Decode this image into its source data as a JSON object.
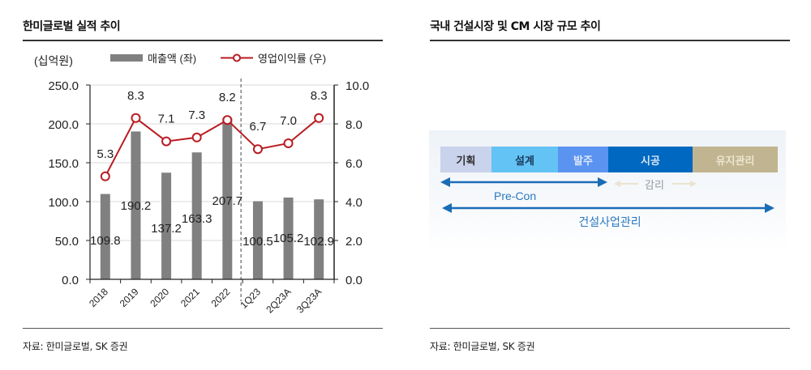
{
  "left_panel": {
    "title": "한미글로벌 실적 추이",
    "unit_label": "(십억원)",
    "legend": {
      "bar_label": "매출액 (좌)",
      "line_label": "영업이익률 (우)"
    },
    "source": "자료: 한미글로벌, SK 증권"
  },
  "right_panel": {
    "title": "국내 건설시장 및 CM 시장 규모 추이",
    "source": "자료: 한미글로벌, SK 증권",
    "diagram": {
      "stages": [
        {
          "label": "기획",
          "color": "#c9d3ec",
          "text_color": "#333333"
        },
        {
          "label": "설계",
          "color": "#62c3f4",
          "text_color": "#1b3a5c"
        },
        {
          "label": "발주",
          "color": "#5b93f0",
          "text_color": "#dce8fb"
        },
        {
          "label": "시공",
          "color": "#0068c0",
          "text_color": "#d6e6f7"
        },
        {
          "label": "유지관리",
          "color": "#c0b590",
          "text_color": "#ece6d0"
        }
      ],
      "precon_label": "Pre-Con",
      "supervision_label": "감리",
      "cm_label": "건설사업관리",
      "arrow_color": "#1a6cb5"
    }
  },
  "chart_data": {
    "type": "bar",
    "title": "한미글로벌 실적 추이",
    "categories": [
      "2018",
      "2019",
      "2020",
      "2021",
      "2022",
      "1Q23",
      "2Q23A",
      "3Q23A"
    ],
    "series": [
      {
        "name": "매출액 (좌)",
        "type": "bar",
        "axis": "left",
        "color": "#808080",
        "values": [
          109.8,
          190.2,
          137.2,
          163.3,
          207.7,
          100.5,
          105.2,
          102.9
        ]
      },
      {
        "name": "영업이익률 (우)",
        "type": "line",
        "axis": "right",
        "color": "#b81c22",
        "values": [
          5.3,
          8.3,
          7.1,
          7.3,
          8.2,
          6.7,
          7.0,
          8.3
        ]
      }
    ],
    "ylabel": "(십억원)",
    "ylim": [
      0,
      250
    ],
    "y_ticks": [
      "0.0",
      "50.0",
      "100.0",
      "150.0",
      "200.0",
      "250.0"
    ],
    "y2lim": [
      0,
      10
    ],
    "y2_ticks": [
      "0.0",
      "2.0",
      "4.0",
      "6.0",
      "8.0",
      "10.0"
    ],
    "grid": true,
    "divider_after": "2022",
    "legend_position": "top"
  }
}
